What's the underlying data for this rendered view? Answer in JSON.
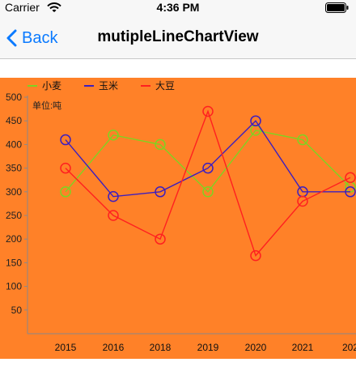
{
  "status_bar": {
    "carrier": "Carrier",
    "time": "4:36 PM"
  },
  "nav": {
    "back_label": "Back",
    "title": "mutipleLineChartView"
  },
  "colors": {
    "accent": "#0a7aff",
    "chart_background": "#ff8128"
  },
  "chart_data": {
    "type": "line",
    "categories": [
      "2015",
      "2016",
      "2018",
      "2019",
      "2020",
      "2021",
      "202"
    ],
    "series": [
      {
        "name": "小麦",
        "color": "#7ed321",
        "values": [
          300,
          420,
          400,
          300,
          430,
          410,
          310
        ]
      },
      {
        "name": "玉米",
        "color": "#3d1fbf",
        "values": [
          410,
          290,
          300,
          350,
          450,
          300,
          300
        ]
      },
      {
        "name": "大豆",
        "color": "#ff2020",
        "values": [
          350,
          250,
          200,
          470,
          165,
          280,
          330
        ]
      }
    ],
    "y_unit_label": "单位:吨",
    "y_ticks": [
      50,
      100,
      150,
      200,
      250,
      300,
      350,
      400,
      450,
      500
    ],
    "ylim": [
      0,
      500
    ],
    "legend_position": "top-left",
    "grid": false,
    "title": "",
    "xlabel": "",
    "ylabel": ""
  }
}
